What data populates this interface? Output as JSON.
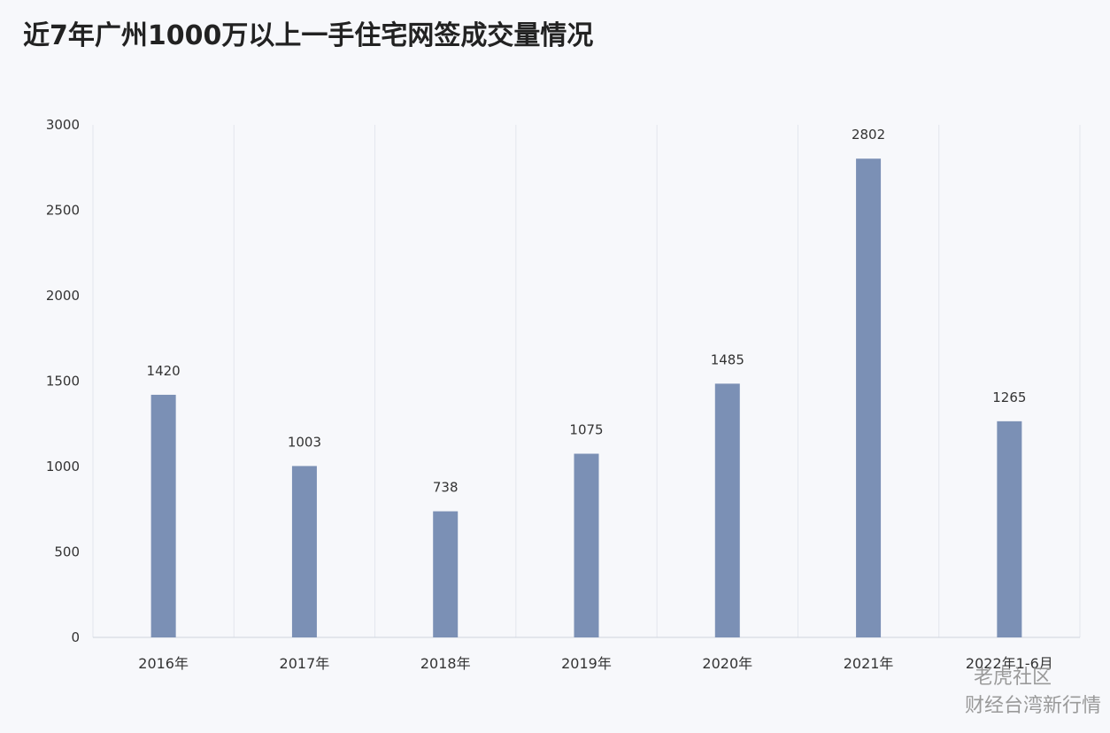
{
  "chart_data": {
    "type": "bar",
    "title": "近7年广州1000万以上一手住宅网签成交量情况",
    "xlabel": "",
    "ylabel": "",
    "categories": [
      "2016年",
      "2017年",
      "2018年",
      "2019年",
      "2020年",
      "2021年",
      "2022年1-6月"
    ],
    "values": [
      1420,
      1003,
      738,
      1075,
      1485,
      2802,
      1265
    ],
    "data_labels": [
      "1420",
      "1003",
      "738",
      "1075",
      "1485",
      "2802",
      "1265"
    ],
    "ylim": [
      0,
      3000
    ],
    "yticks": [
      0,
      500,
      1000,
      1500,
      2000,
      2500,
      3000
    ],
    "ytick_labels": [
      "0",
      "500",
      "1000",
      "1500",
      "2000",
      "2500",
      "3000"
    ],
    "grid": "vertical separators",
    "legend": "none",
    "bar_color": "#7b90b5"
  },
  "watermark": {
    "line1": "老虎社区",
    "line2": "财经台湾新行情"
  }
}
